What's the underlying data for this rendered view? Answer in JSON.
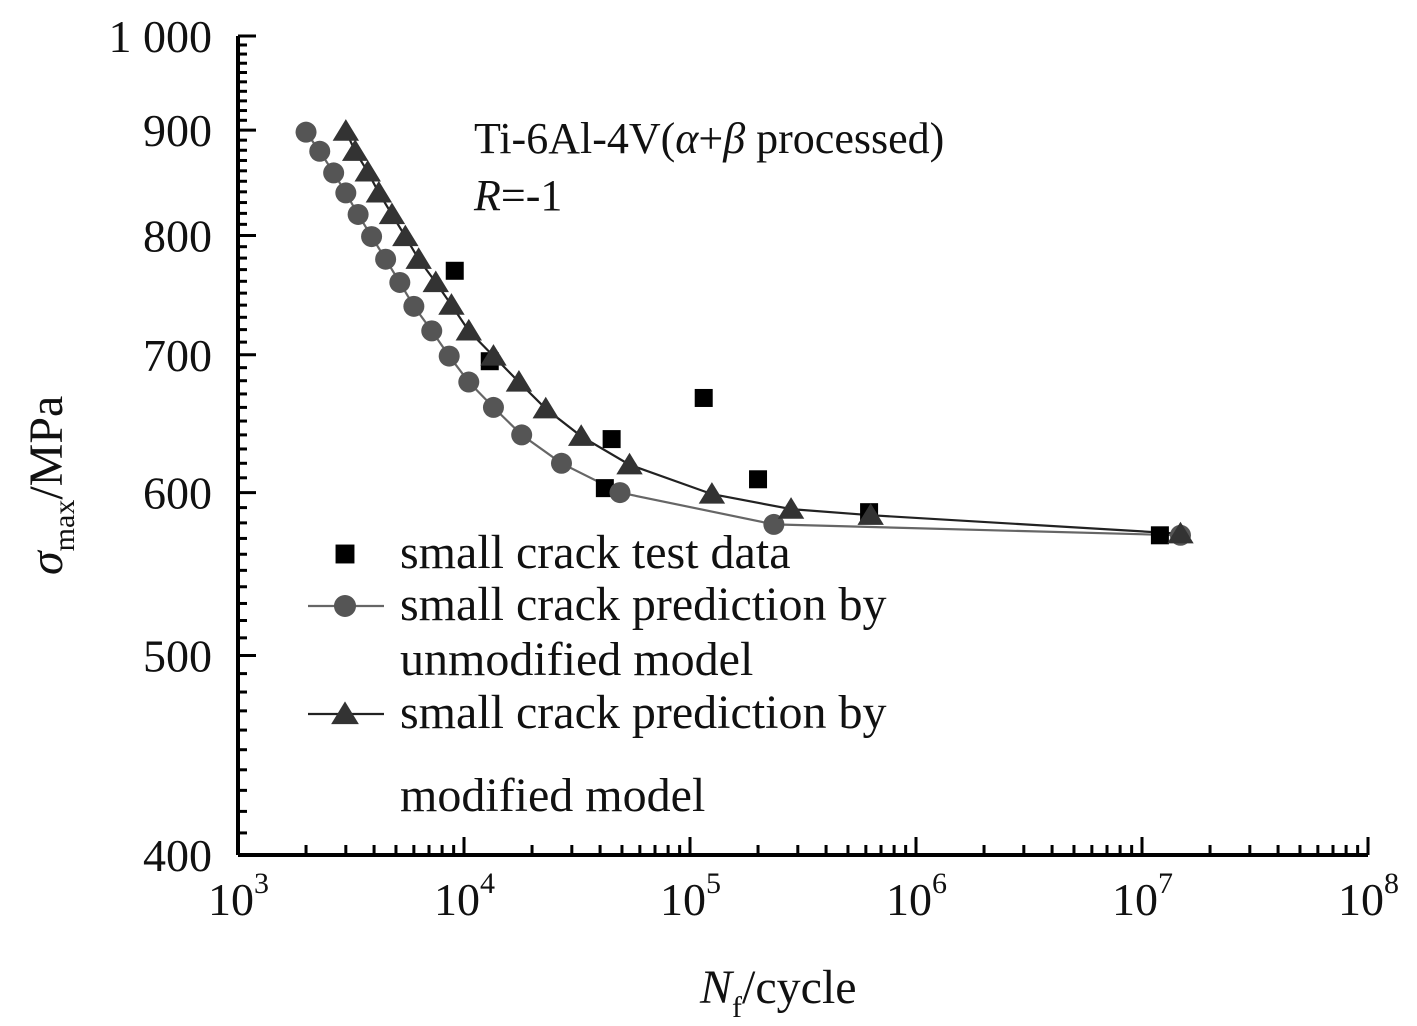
{
  "chart_data": {
    "type": "scatter",
    "title": "Ti-6Al-4V(α+β processed)",
    "annotation": {
      "material_prefix": "Ti-6Al-4V(",
      "alpha": "α",
      "plus": "+",
      "beta": "β",
      "material_suffix": " processed)",
      "r_symbol": "R",
      "r_value": "=-1"
    },
    "xlabel": {
      "symbol": "N",
      "subscript": "f",
      "unit": "/cycle"
    },
    "ylabel": {
      "symbol": "σ",
      "subscript": "max",
      "unit": "/MPa"
    },
    "xscale": "log",
    "yscale": "log",
    "xlim": [
      1000,
      100000000
    ],
    "ylim": [
      400,
      1000
    ],
    "x_ticks": [
      {
        "value": 1000,
        "base": "10",
        "exp": "3"
      },
      {
        "value": 10000,
        "base": "10",
        "exp": "4"
      },
      {
        "value": 100000,
        "base": "10",
        "exp": "5"
      },
      {
        "value": 1000000,
        "base": "10",
        "exp": "6"
      },
      {
        "value": 10000000,
        "base": "10",
        "exp": "7"
      },
      {
        "value": 100000000,
        "base": "10",
        "exp": "8"
      }
    ],
    "y_ticks": [
      {
        "value": 400,
        "label": "400"
      },
      {
        "value": 500,
        "label": "500"
      },
      {
        "value": 600,
        "label": "600"
      },
      {
        "value": 700,
        "label": "700"
      },
      {
        "value": 800,
        "label": "800"
      },
      {
        "value": 900,
        "label": "900"
      },
      {
        "value": 1000,
        "label": "1 000"
      }
    ],
    "legend_position": "lower-left",
    "series": [
      {
        "name": "small crack test data",
        "legend_lines": [
          "small crack test data"
        ],
        "marker": "square",
        "line": false,
        "color": "#000000",
        "points": [
          [
            9100,
            769
          ],
          [
            13000,
            695
          ],
          [
            42000,
            603
          ],
          [
            45000,
            637
          ],
          [
            115000,
            667
          ],
          [
            200000,
            609
          ],
          [
            620000,
            587
          ],
          [
            12000000,
            572
          ]
        ]
      },
      {
        "name": "small crack prediction by unmodified model",
        "legend_lines": [
          "small crack prediction by",
          "unmodified model"
        ],
        "marker": "circle",
        "line": true,
        "color": "#555555",
        "line_color": "#666666",
        "points": [
          [
            2000,
            898
          ],
          [
            2300,
            879
          ],
          [
            2650,
            858
          ],
          [
            3000,
            839
          ],
          [
            3400,
            819
          ],
          [
            3900,
            799
          ],
          [
            4500,
            779
          ],
          [
            5200,
            759
          ],
          [
            6000,
            739
          ],
          [
            7200,
            719
          ],
          [
            8600,
            699
          ],
          [
            10500,
            679
          ],
          [
            13500,
            660
          ],
          [
            18000,
            640
          ],
          [
            27000,
            620
          ],
          [
            49000,
            600
          ],
          [
            235000,
            579
          ],
          [
            14800000,
            572
          ]
        ]
      },
      {
        "name": "small crack prediction by modified model",
        "legend_lines": [
          "small crack prediction by",
          "modified model"
        ],
        "marker": "triangle",
        "line": true,
        "color": "#333333",
        "line_color": "#222222",
        "points": [
          [
            3000,
            899
          ],
          [
            3300,
            879
          ],
          [
            3750,
            859
          ],
          [
            4200,
            839
          ],
          [
            4800,
            819
          ],
          [
            5500,
            799
          ],
          [
            6300,
            779
          ],
          [
            7500,
            759
          ],
          [
            8800,
            740
          ],
          [
            10500,
            719
          ],
          [
            13500,
            699
          ],
          [
            17500,
            679
          ],
          [
            23000,
            659
          ],
          [
            33000,
            639
          ],
          [
            54000,
            619
          ],
          [
            125000,
            599
          ],
          [
            280000,
            589
          ],
          [
            630000,
            585
          ],
          [
            14800000,
            573
          ]
        ]
      }
    ]
  }
}
